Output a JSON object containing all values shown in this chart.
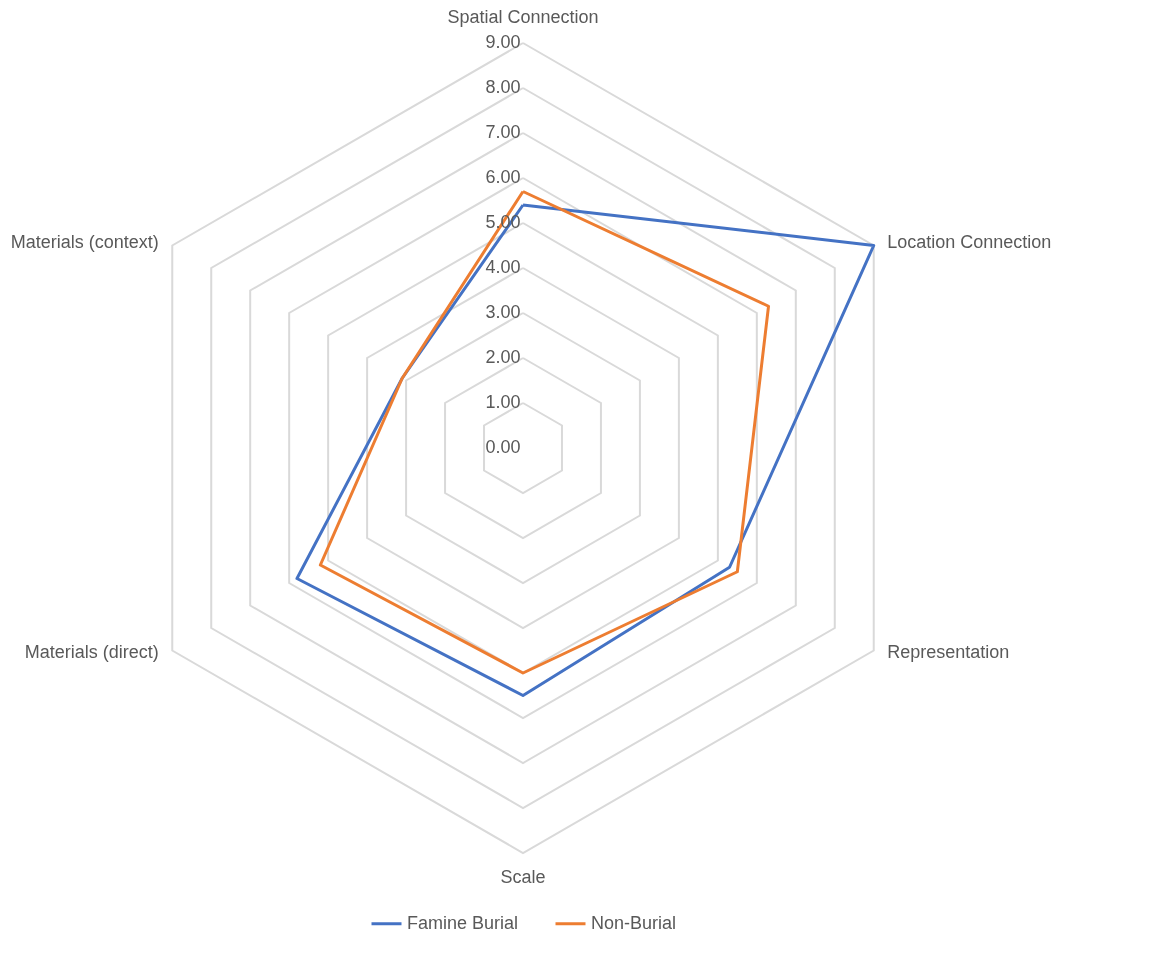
{
  "chart_data": {
    "type": "radar",
    "categories": [
      "Spatial Connection",
      "Location Connection",
      "Representation",
      "Scale",
      "Materials (direct)",
      "Materials (context)"
    ],
    "series": [
      {
        "name": "Famine Burial",
        "color": "#4472c4",
        "values": [
          5.4,
          9.0,
          5.3,
          5.5,
          5.8,
          3.1
        ]
      },
      {
        "name": "Non-Burial",
        "color": "#ed7d31",
        "values": [
          5.7,
          6.3,
          5.5,
          5.0,
          5.2,
          3.1
        ]
      }
    ],
    "ylim": [
      0,
      9
    ],
    "yticks": [
      {
        "value": 0,
        "label": "0.00"
      },
      {
        "value": 1,
        "label": "1.00"
      },
      {
        "value": 2,
        "label": "2.00"
      },
      {
        "value": 3,
        "label": "3.00"
      },
      {
        "value": 4,
        "label": "4.00"
      },
      {
        "value": 5,
        "label": "5.00"
      },
      {
        "value": 6,
        "label": "6.00"
      },
      {
        "value": 7,
        "label": "7.00"
      },
      {
        "value": 8,
        "label": "8.00"
      },
      {
        "value": 9,
        "label": "9.00"
      }
    ],
    "grid": true,
    "legend": "bottom"
  }
}
